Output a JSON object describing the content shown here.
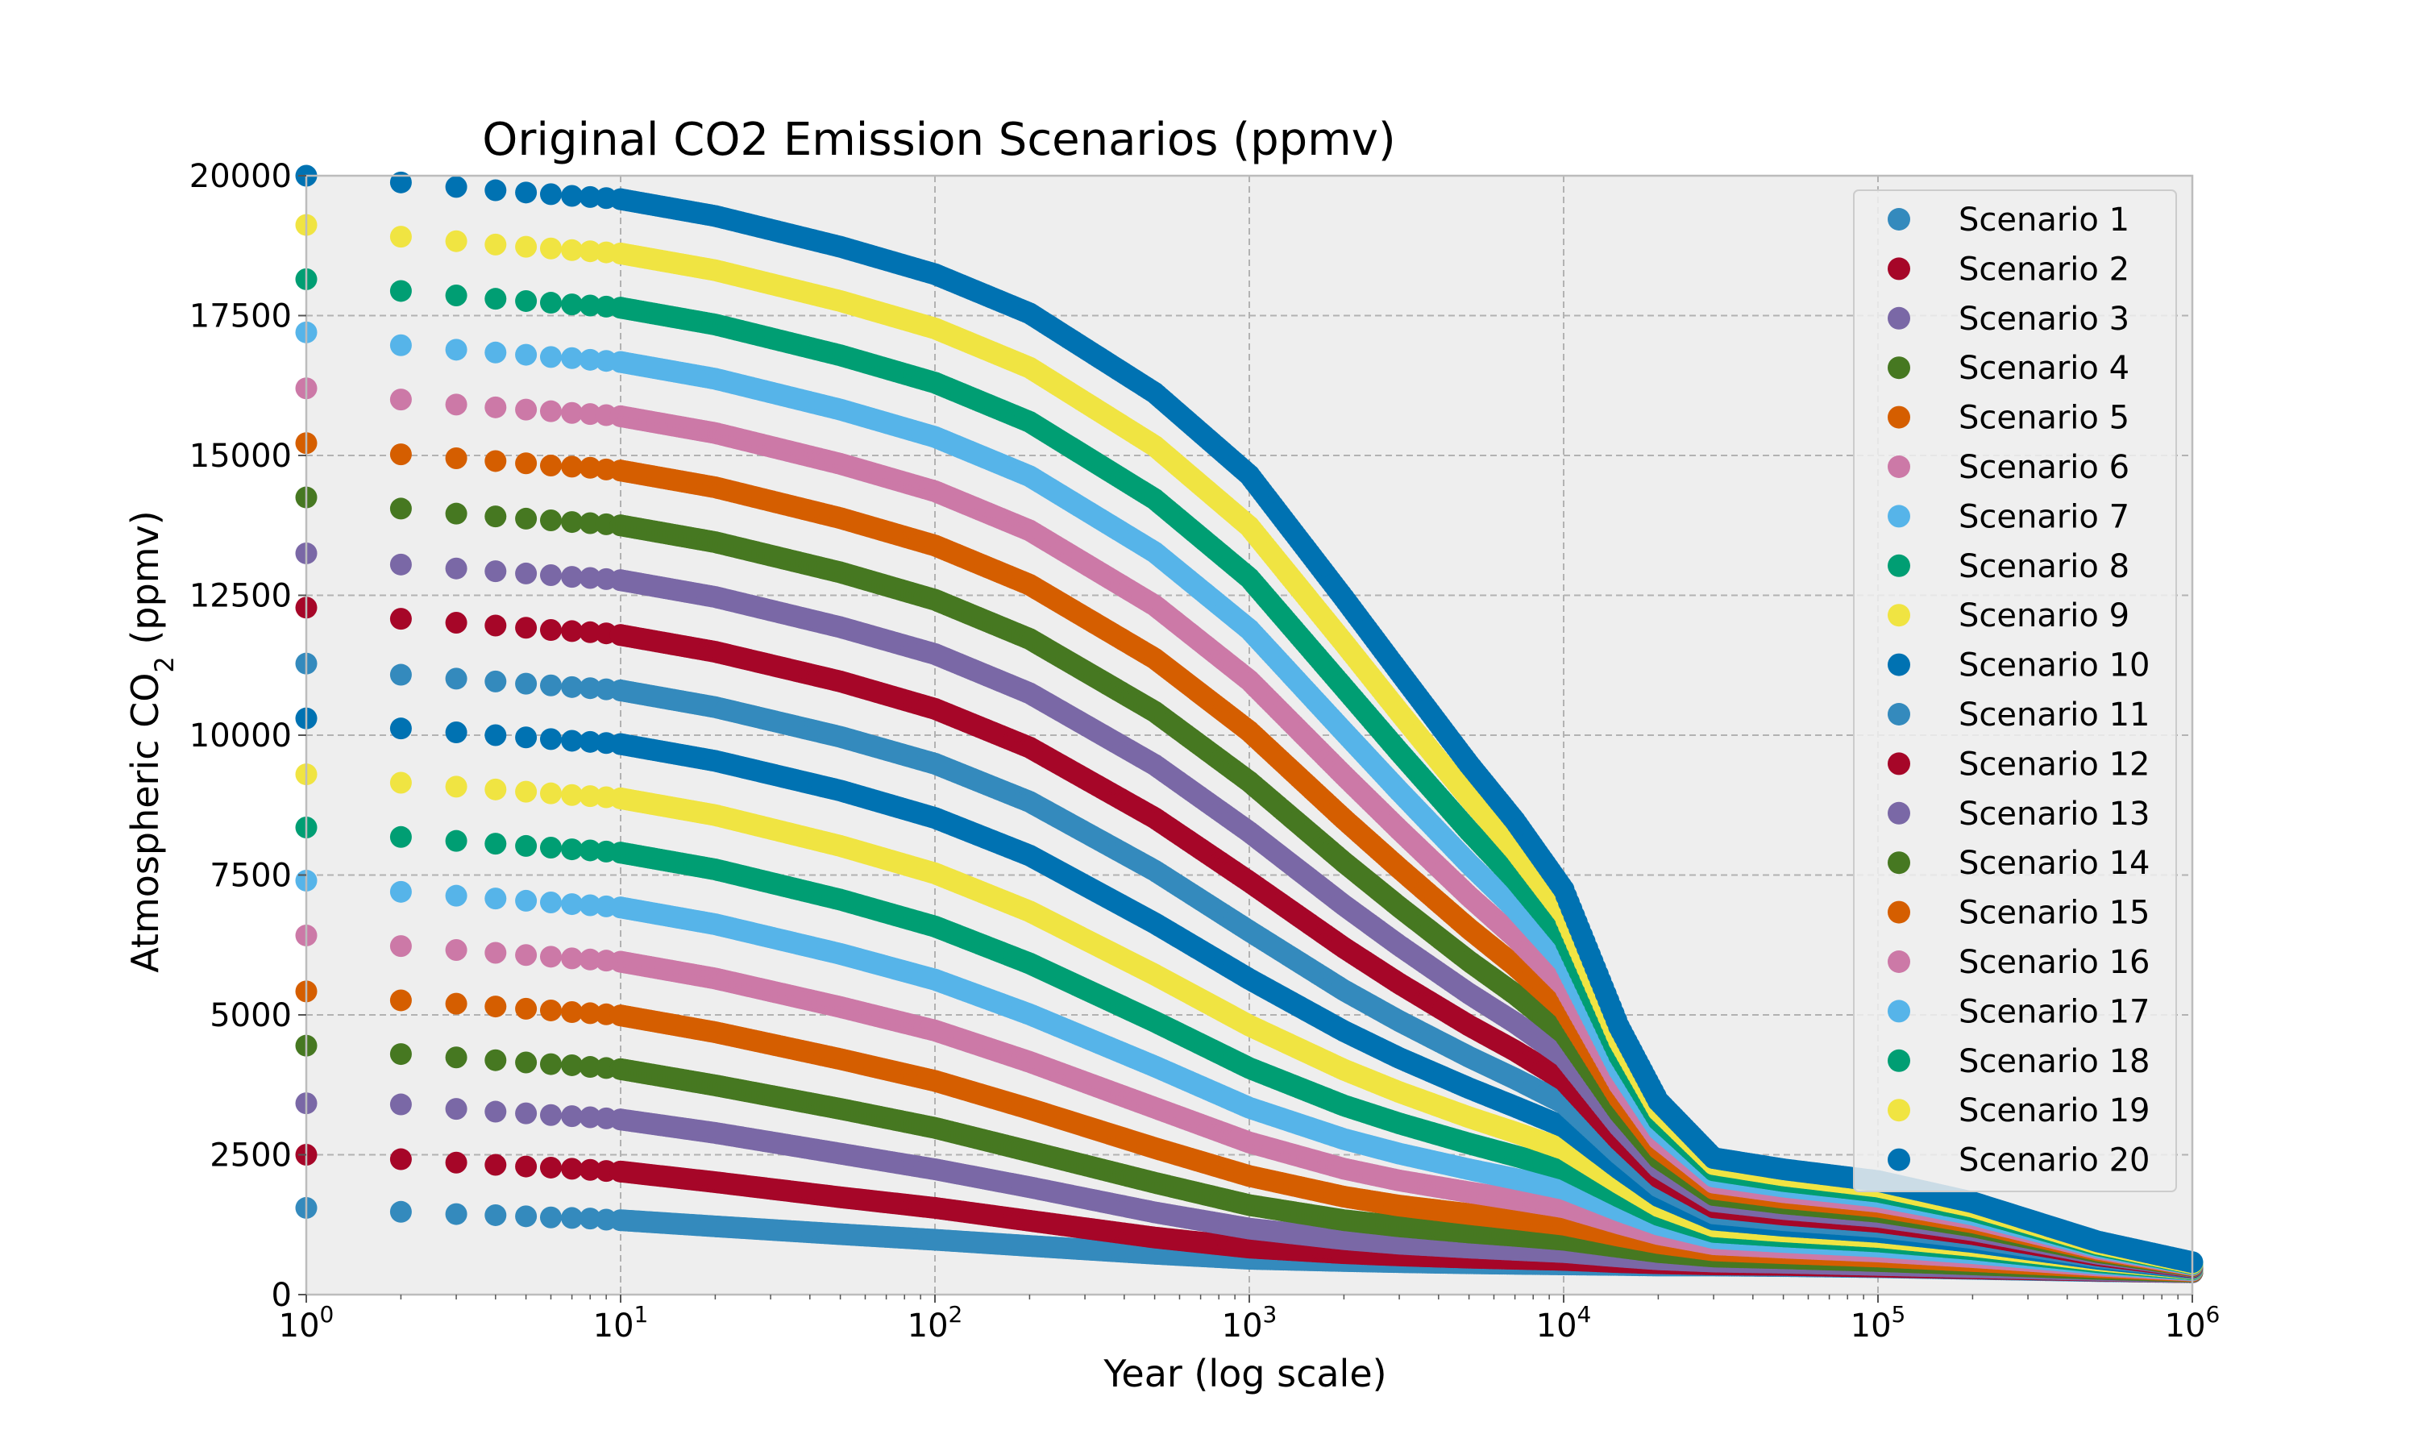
{
  "chart_data": {
    "type": "scatter",
    "title": "Original CO2 Emission Scenarios (ppmv)",
    "xlabel": "Year (log scale)",
    "ylabel": {
      "main": "Atmospheric CO",
      "sub": "2",
      "unit": " (ppmv)"
    },
    "xscale": "log",
    "xlim": [
      1,
      1000000
    ],
    "ylim": [
      0,
      20000
    ],
    "x_ticks": [
      {
        "base": "10",
        "exp": "0"
      },
      {
        "base": "10",
        "exp": "1"
      },
      {
        "base": "10",
        "exp": "2"
      },
      {
        "base": "10",
        "exp": "3"
      },
      {
        "base": "10",
        "exp": "4"
      },
      {
        "base": "10",
        "exp": "5"
      },
      {
        "base": "10",
        "exp": "6"
      }
    ],
    "y_ticks": [
      "0",
      "2500",
      "5000",
      "7500",
      "10000",
      "12500",
      "15000",
      "17500",
      "20000"
    ],
    "grid": true,
    "legend_position": "top-right",
    "x": [
      1,
      2,
      3,
      4,
      5,
      6,
      7,
      8,
      9,
      10,
      20,
      50,
      100,
      200,
      500,
      1000,
      2000,
      3000,
      5000,
      7000,
      10000,
      15000,
      20000,
      30000,
      50000,
      100000,
      200000,
      500000,
      1000000
    ],
    "series": [
      {
        "name": "Scenario 1",
        "color": "#348ABD",
        "values": [
          1550,
          1480,
          1440,
          1420,
          1400,
          1380,
          1370,
          1360,
          1340,
          1330,
          1220,
          1080,
          980,
          870,
          730,
          640,
          600,
          580,
          560,
          550,
          540,
          530,
          520,
          520,
          510,
          490,
          460,
          420,
          400
        ]
      },
      {
        "name": "Scenario 2",
        "color": "#A60628",
        "values": [
          2500,
          2420,
          2360,
          2320,
          2290,
          2270,
          2250,
          2230,
          2210,
          2200,
          2010,
          1740,
          1550,
          1320,
          1020,
          840,
          740,
          700,
          660,
          640,
          620,
          580,
          560,
          540,
          530,
          500,
          470,
          430,
          400
        ]
      },
      {
        "name": "Scenario 3",
        "color": "#7A68A6",
        "values": [
          3420,
          3400,
          3320,
          3270,
          3240,
          3210,
          3190,
          3170,
          3150,
          3130,
          2890,
          2520,
          2240,
          1920,
          1470,
          1180,
          990,
          910,
          840,
          800,
          760,
          680,
          630,
          590,
          570,
          530,
          490,
          440,
          400
        ]
      },
      {
        "name": "Scenario 4",
        "color": "#467821",
        "values": [
          4450,
          4300,
          4240,
          4190,
          4150,
          4120,
          4100,
          4070,
          4050,
          4030,
          3740,
          3320,
          2980,
          2560,
          2000,
          1600,
          1330,
          1220,
          1110,
          1050,
          980,
          850,
          760,
          680,
          650,
          600,
          540,
          460,
          410
        ]
      },
      {
        "name": "Scenario 5",
        "color": "#D55E00",
        "values": [
          5420,
          5260,
          5200,
          5150,
          5110,
          5080,
          5050,
          5030,
          5010,
          4990,
          4690,
          4210,
          3820,
          3320,
          2620,
          2120,
          1750,
          1590,
          1440,
          1350,
          1250,
          1050,
          920,
          790,
          740,
          680,
          600,
          490,
          420
        ]
      },
      {
        "name": "Scenario 6",
        "color": "#CC79A7",
        "values": [
          6420,
          6230,
          6160,
          6110,
          6070,
          6040,
          6010,
          5990,
          5970,
          5950,
          5650,
          5140,
          4720,
          4160,
          3340,
          2720,
          2250,
          2040,
          1830,
          1700,
          1560,
          1270,
          1080,
          900,
          840,
          770,
          670,
          520,
          430
        ]
      },
      {
        "name": "Scenario 7",
        "color": "#56B4E9",
        "values": [
          7400,
          7200,
          7130,
          7080,
          7040,
          7010,
          6980,
          6960,
          6940,
          6920,
          6620,
          6090,
          5630,
          5010,
          4080,
          3340,
          2780,
          2520,
          2240,
          2070,
          1890,
          1500,
          1250,
          1010,
          940,
          860,
          740,
          550,
          440
        ]
      },
      {
        "name": "Scenario 8",
        "color": "#009E73",
        "values": [
          8350,
          8180,
          8110,
          8060,
          8020,
          7990,
          7960,
          7940,
          7920,
          7900,
          7600,
          7060,
          6580,
          5920,
          4880,
          4050,
          3380,
          3060,
          2700,
          2480,
          2240,
          1750,
          1420,
          1120,
          1040,
          950,
          810,
          580,
          450
        ]
      },
      {
        "name": "Scenario 9",
        "color": "#F0E442",
        "values": [
          9300,
          9150,
          9080,
          9030,
          8990,
          8960,
          8930,
          8910,
          8890,
          8870,
          8570,
          8020,
          7530,
          6850,
          5720,
          4810,
          4020,
          3620,
          3170,
          2900,
          2600,
          1990,
          1580,
          1220,
          1130,
          1030,
          870,
          610,
          460
        ]
      },
      {
        "name": "Scenario 10",
        "color": "#0072B2",
        "values": [
          10300,
          10120,
          10050,
          10000,
          9960,
          9930,
          9900,
          9880,
          9860,
          9840,
          9540,
          9010,
          8520,
          7850,
          6640,
          5640,
          4710,
          4230,
          3690,
          3360,
          3000,
          2250,
          1760,
          1340,
          1230,
          1120,
          940,
          640,
          470
        ]
      },
      {
        "name": "Scenario 11",
        "color": "#348ABD",
        "values": [
          11280,
          11080,
          11010,
          10960,
          10920,
          10890,
          10860,
          10840,
          10820,
          10800,
          10500,
          9970,
          9490,
          8810,
          7580,
          6500,
          5440,
          4890,
          4250,
          3860,
          3420,
          2510,
          1930,
          1450,
          1330,
          1210,
          1010,
          670,
          480
        ]
      },
      {
        "name": "Scenario 12",
        "color": "#A60628",
        "values": [
          12280,
          12080,
          12010,
          11960,
          11920,
          11880,
          11860,
          11840,
          11820,
          11790,
          11490,
          10960,
          10470,
          9780,
          8520,
          7380,
          6200,
          5560,
          4810,
          4360,
          3830,
          2760,
          2100,
          1560,
          1430,
          1300,
          1080,
          700,
          490
        ]
      },
      {
        "name": "Scenario 13",
        "color": "#7A68A6",
        "values": [
          13250,
          13050,
          12980,
          12930,
          12890,
          12860,
          12830,
          12810,
          12790,
          12770,
          12470,
          11930,
          11450,
          10750,
          9470,
          8270,
          6960,
          6240,
          5380,
          4860,
          4250,
          3010,
          2270,
          1670,
          1530,
          1390,
          1150,
          730,
          500
        ]
      },
      {
        "name": "Scenario 14",
        "color": "#467821",
        "values": [
          14250,
          14050,
          13960,
          13910,
          13870,
          13840,
          13810,
          13790,
          13770,
          13750,
          13450,
          12910,
          12420,
          11720,
          10420,
          9170,
          7730,
          6930,
          5960,
          5370,
          4670,
          3260,
          2440,
          1780,
          1630,
          1480,
          1220,
          760,
          510
        ]
      },
      {
        "name": "Scenario 15",
        "color": "#D55E00",
        "values": [
          15220,
          15020,
          14950,
          14900,
          14860,
          14820,
          14800,
          14780,
          14750,
          14730,
          14430,
          13880,
          13390,
          12690,
          11370,
          10070,
          8500,
          7620,
          6540,
          5880,
          5100,
          3510,
          2610,
          1890,
          1730,
          1570,
          1290,
          790,
          520
        ]
      },
      {
        "name": "Scenario 16",
        "color": "#CC79A7",
        "values": [
          16200,
          16000,
          15910,
          15860,
          15820,
          15790,
          15760,
          15740,
          15720,
          15700,
          15400,
          14850,
          14360,
          13660,
          12320,
          10980,
          9280,
          8310,
          7120,
          6390,
          5520,
          3760,
          2780,
          2000,
          1830,
          1660,
          1360,
          820,
          530
        ]
      },
      {
        "name": "Scenario 17",
        "color": "#56B4E9",
        "values": [
          17200,
          16970,
          16890,
          16840,
          16800,
          16760,
          16740,
          16710,
          16690,
          16670,
          16370,
          15820,
          15330,
          14630,
          13270,
          11890,
          10060,
          9000,
          7700,
          6900,
          5940,
          4010,
          2950,
          2110,
          1930,
          1750,
          1430,
          850,
          540
        ]
      },
      {
        "name": "Scenario 18",
        "color": "#009E73",
        "values": [
          18150,
          17940,
          17860,
          17800,
          17760,
          17730,
          17700,
          17680,
          17660,
          17640,
          17340,
          16790,
          16300,
          15600,
          14220,
          12810,
          10850,
          9700,
          8290,
          7420,
          6370,
          4270,
          3120,
          2220,
          2030,
          1840,
          1500,
          880,
          550
        ]
      },
      {
        "name": "Scenario 19",
        "color": "#F0E442",
        "values": [
          19120,
          18910,
          18830,
          18770,
          18730,
          18700,
          18670,
          18650,
          18630,
          18610,
          18310,
          17760,
          17270,
          16570,
          15170,
          13730,
          11650,
          10410,
          8880,
          7940,
          6800,
          4530,
          3290,
          2330,
          2130,
          1930,
          1570,
          910,
          560
        ]
      },
      {
        "name": "Scenario 20",
        "color": "#0072B2",
        "values": [
          20000,
          19880,
          19800,
          19740,
          19700,
          19670,
          19640,
          19620,
          19600,
          19580,
          19280,
          18730,
          18240,
          17540,
          16120,
          14650,
          12450,
          11130,
          9480,
          8470,
          7240,
          4790,
          3460,
          2440,
          2240,
          2030,
          1650,
          950,
          580
        ]
      }
    ]
  }
}
